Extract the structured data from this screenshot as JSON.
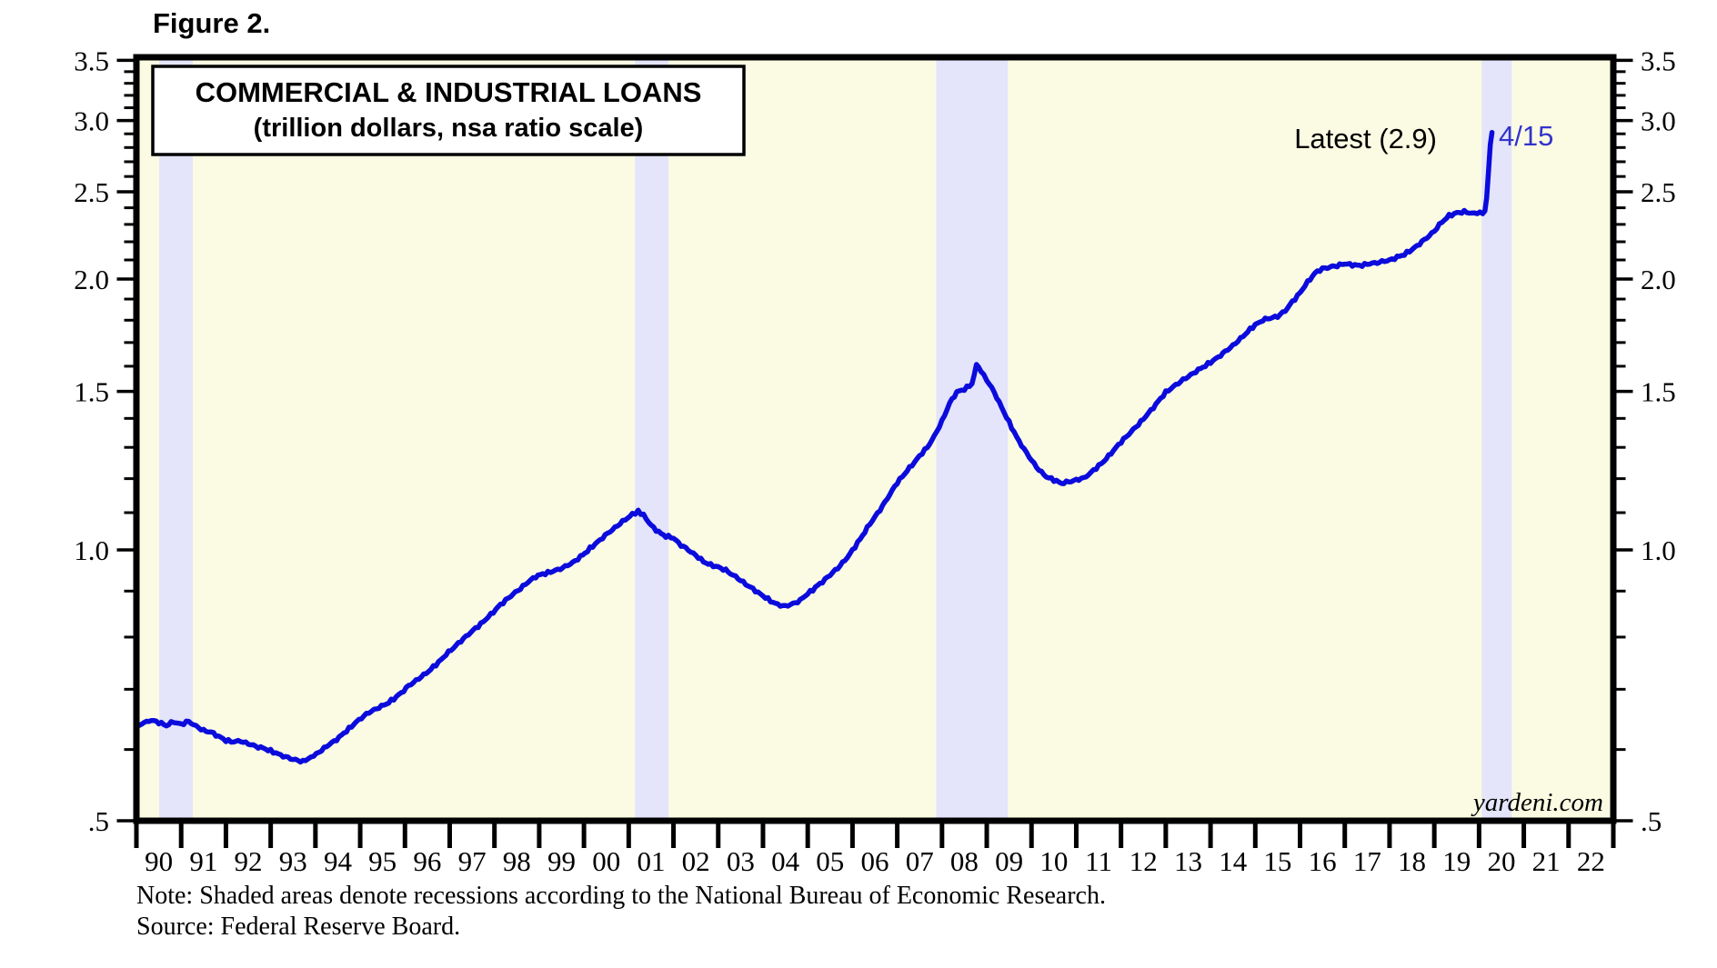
{
  "figure_label": "Figure 2.",
  "title_box": {
    "line1": "COMMERCIAL & INDUSTRIAL LOANS",
    "line2": "(trillion dollars, nsa ratio scale)"
  },
  "annotations": {
    "latest_label": "Latest (2.9)",
    "latest_date_label": "4/15",
    "watermark": "yardeni.com"
  },
  "notes": {
    "note": "Note: Shaded areas denote recessions according to the National Bureau of Economic Research.",
    "source": "Source: Federal Reserve Board."
  },
  "colors": {
    "plot_background": "#FBFBE3",
    "recession_band": "#E4E4FA",
    "line": "#0B0BDC",
    "date_label_blue": "#3333CC",
    "axis_black": "#000000"
  },
  "chart_data": {
    "type": "line",
    "title": "COMMERCIAL & INDUSTRIAL LOANS",
    "subtitle": "(trillion dollars, nsa ratio scale)",
    "ylabel": "trillion dollars",
    "y_axis": {
      "scale": "log",
      "min": 0.5,
      "max": 3.5,
      "major_values": [
        0.5,
        1.0,
        1.5,
        2.0,
        2.5,
        3.0,
        3.5
      ],
      "major_labels": [
        ".5",
        "1.0",
        "1.5",
        "2.0",
        "2.5",
        "3.0",
        "3.5"
      ],
      "minor_step": 0.1,
      "sides": "both"
    },
    "x_axis": {
      "start_year": 1990,
      "end_year": 2023,
      "labels": [
        "90",
        "91",
        "92",
        "93",
        "94",
        "95",
        "96",
        "97",
        "98",
        "99",
        "00",
        "01",
        "02",
        "03",
        "04",
        "05",
        "06",
        "07",
        "08",
        "09",
        "10",
        "11",
        "12",
        "13",
        "14",
        "15",
        "16",
        "17",
        "18",
        "19",
        "20",
        "21",
        "22"
      ]
    },
    "recessions": [
      {
        "start": 1990.51,
        "end": 1991.26
      },
      {
        "start": 2001.14,
        "end": 2001.89
      },
      {
        "start": 2007.87,
        "end": 2009.47
      },
      {
        "start": 2020.06,
        "end": 2020.73
      }
    ],
    "latest_value": 2.9,
    "latest_date": "4/15",
    "series": [
      {
        "name": "Commercial & Industrial Loans",
        "color": "#0B0BDC",
        "points": [
          [
            1990.0,
            0.636
          ],
          [
            1990.17,
            0.642
          ],
          [
            1990.33,
            0.647
          ],
          [
            1990.5,
            0.643
          ],
          [
            1990.67,
            0.638
          ],
          [
            1990.83,
            0.644
          ],
          [
            1991.0,
            0.64
          ],
          [
            1991.17,
            0.645
          ],
          [
            1991.33,
            0.637
          ],
          [
            1991.5,
            0.63
          ],
          [
            1991.67,
            0.627
          ],
          [
            1991.83,
            0.621
          ],
          [
            1992.0,
            0.614
          ],
          [
            1992.17,
            0.612
          ],
          [
            1992.33,
            0.613
          ],
          [
            1992.5,
            0.609
          ],
          [
            1992.67,
            0.605
          ],
          [
            1992.83,
            0.602
          ],
          [
            1993.0,
            0.598
          ],
          [
            1993.17,
            0.593
          ],
          [
            1993.33,
            0.589
          ],
          [
            1993.5,
            0.585
          ],
          [
            1993.72,
            0.582
          ],
          [
            1993.9,
            0.588
          ],
          [
            1994.08,
            0.596
          ],
          [
            1994.25,
            0.605
          ],
          [
            1994.42,
            0.613
          ],
          [
            1994.58,
            0.622
          ],
          [
            1994.75,
            0.633
          ],
          [
            1994.92,
            0.644
          ],
          [
            1995.08,
            0.654
          ],
          [
            1995.25,
            0.662
          ],
          [
            1995.42,
            0.668
          ],
          [
            1995.58,
            0.674
          ],
          [
            1995.75,
            0.683
          ],
          [
            1995.92,
            0.694
          ],
          [
            1996.08,
            0.706
          ],
          [
            1996.25,
            0.716
          ],
          [
            1996.42,
            0.726
          ],
          [
            1996.58,
            0.737
          ],
          [
            1996.75,
            0.75
          ],
          [
            1996.92,
            0.765
          ],
          [
            1997.08,
            0.778
          ],
          [
            1997.25,
            0.792
          ],
          [
            1997.42,
            0.806
          ],
          [
            1997.58,
            0.818
          ],
          [
            1997.75,
            0.832
          ],
          [
            1997.92,
            0.848
          ],
          [
            1998.08,
            0.864
          ],
          [
            1998.25,
            0.879
          ],
          [
            1998.42,
            0.893
          ],
          [
            1998.58,
            0.906
          ],
          [
            1998.75,
            0.921
          ],
          [
            1998.92,
            0.934
          ],
          [
            1999.08,
            0.94
          ],
          [
            1999.25,
            0.945
          ],
          [
            1999.42,
            0.951
          ],
          [
            1999.58,
            0.958
          ],
          [
            1999.75,
            0.968
          ],
          [
            1999.92,
            0.982
          ],
          [
            2000.08,
            0.998
          ],
          [
            2000.25,
            1.015
          ],
          [
            2000.42,
            1.032
          ],
          [
            2000.58,
            1.048
          ],
          [
            2000.75,
            1.064
          ],
          [
            2000.92,
            1.081
          ],
          [
            2001.08,
            1.094
          ],
          [
            2001.21,
            1.104
          ],
          [
            2001.33,
            1.093
          ],
          [
            2001.5,
            1.065
          ],
          [
            2001.67,
            1.046
          ],
          [
            2001.83,
            1.036
          ],
          [
            2002.0,
            1.031
          ],
          [
            2002.17,
            1.012
          ],
          [
            2002.33,
            1.0
          ],
          [
            2002.5,
            0.986
          ],
          [
            2002.67,
            0.971
          ],
          [
            2002.83,
            0.962
          ],
          [
            2003.0,
            0.957
          ],
          [
            2003.17,
            0.949
          ],
          [
            2003.33,
            0.938
          ],
          [
            2003.5,
            0.925
          ],
          [
            2003.67,
            0.912
          ],
          [
            2003.83,
            0.901
          ],
          [
            2004.0,
            0.889
          ],
          [
            2004.17,
            0.878
          ],
          [
            2004.33,
            0.869
          ],
          [
            2004.5,
            0.866
          ],
          [
            2004.67,
            0.871
          ],
          [
            2004.83,
            0.879
          ],
          [
            2005.0,
            0.894
          ],
          [
            2005.17,
            0.908
          ],
          [
            2005.33,
            0.922
          ],
          [
            2005.5,
            0.938
          ],
          [
            2005.67,
            0.955
          ],
          [
            2005.83,
            0.973
          ],
          [
            2006.0,
            0.999
          ],
          [
            2006.17,
            1.028
          ],
          [
            2006.33,
            1.058
          ],
          [
            2006.5,
            1.088
          ],
          [
            2006.67,
            1.118
          ],
          [
            2006.83,
            1.152
          ],
          [
            2007.0,
            1.188
          ],
          [
            2007.17,
            1.216
          ],
          [
            2007.33,
            1.242
          ],
          [
            2007.5,
            1.272
          ],
          [
            2007.67,
            1.3
          ],
          [
            2007.83,
            1.338
          ],
          [
            2008.0,
            1.39
          ],
          [
            2008.17,
            1.455
          ],
          [
            2008.33,
            1.498
          ],
          [
            2008.5,
            1.508
          ],
          [
            2008.67,
            1.53
          ],
          [
            2008.77,
            1.603
          ],
          [
            2008.87,
            1.582
          ],
          [
            2009.0,
            1.545
          ],
          [
            2009.17,
            1.497
          ],
          [
            2009.33,
            1.44
          ],
          [
            2009.5,
            1.386
          ],
          [
            2009.67,
            1.334
          ],
          [
            2009.83,
            1.295
          ],
          [
            2010.0,
            1.258
          ],
          [
            2010.17,
            1.226
          ],
          [
            2010.33,
            1.206
          ],
          [
            2010.5,
            1.196
          ],
          [
            2010.67,
            1.186
          ],
          [
            2010.83,
            1.19
          ],
          [
            2011.0,
            1.196
          ],
          [
            2011.17,
            1.202
          ],
          [
            2011.33,
            1.219
          ],
          [
            2011.5,
            1.24
          ],
          [
            2011.67,
            1.262
          ],
          [
            2011.83,
            1.29
          ],
          [
            2012.0,
            1.318
          ],
          [
            2012.17,
            1.344
          ],
          [
            2012.33,
            1.369
          ],
          [
            2012.5,
            1.398
          ],
          [
            2012.67,
            1.43
          ],
          [
            2012.83,
            1.462
          ],
          [
            2013.0,
            1.497
          ],
          [
            2013.17,
            1.518
          ],
          [
            2013.33,
            1.539
          ],
          [
            2013.5,
            1.558
          ],
          [
            2013.67,
            1.578
          ],
          [
            2013.83,
            1.596
          ],
          [
            2014.0,
            1.616
          ],
          [
            2014.17,
            1.638
          ],
          [
            2014.33,
            1.661
          ],
          [
            2014.5,
            1.687
          ],
          [
            2014.67,
            1.717
          ],
          [
            2014.83,
            1.748
          ],
          [
            2015.0,
            1.779
          ],
          [
            2015.17,
            1.8
          ],
          [
            2015.33,
            1.81
          ],
          [
            2015.5,
            1.817
          ],
          [
            2015.67,
            1.845
          ],
          [
            2015.83,
            1.886
          ],
          [
            2016.0,
            1.931
          ],
          [
            2016.17,
            1.985
          ],
          [
            2016.33,
            2.03
          ],
          [
            2016.5,
            2.054
          ],
          [
            2016.67,
            2.061
          ],
          [
            2016.83,
            2.07
          ],
          [
            2017.0,
            2.08
          ],
          [
            2017.17,
            2.074
          ],
          [
            2017.33,
            2.069
          ],
          [
            2017.5,
            2.078
          ],
          [
            2017.67,
            2.084
          ],
          [
            2017.83,
            2.091
          ],
          [
            2018.0,
            2.099
          ],
          [
            2018.17,
            2.114
          ],
          [
            2018.33,
            2.131
          ],
          [
            2018.5,
            2.156
          ],
          [
            2018.67,
            2.188
          ],
          [
            2018.83,
            2.222
          ],
          [
            2019.0,
            2.261
          ],
          [
            2019.17,
            2.315
          ],
          [
            2019.33,
            2.351
          ],
          [
            2019.5,
            2.369
          ],
          [
            2019.67,
            2.375
          ],
          [
            2019.83,
            2.369
          ],
          [
            2019.96,
            2.366
          ],
          [
            2020.08,
            2.372
          ],
          [
            2020.13,
            2.381
          ],
          [
            2020.17,
            2.46
          ],
          [
            2020.21,
            2.63
          ],
          [
            2020.25,
            2.82
          ],
          [
            2020.29,
            2.91
          ]
        ]
      }
    ]
  }
}
